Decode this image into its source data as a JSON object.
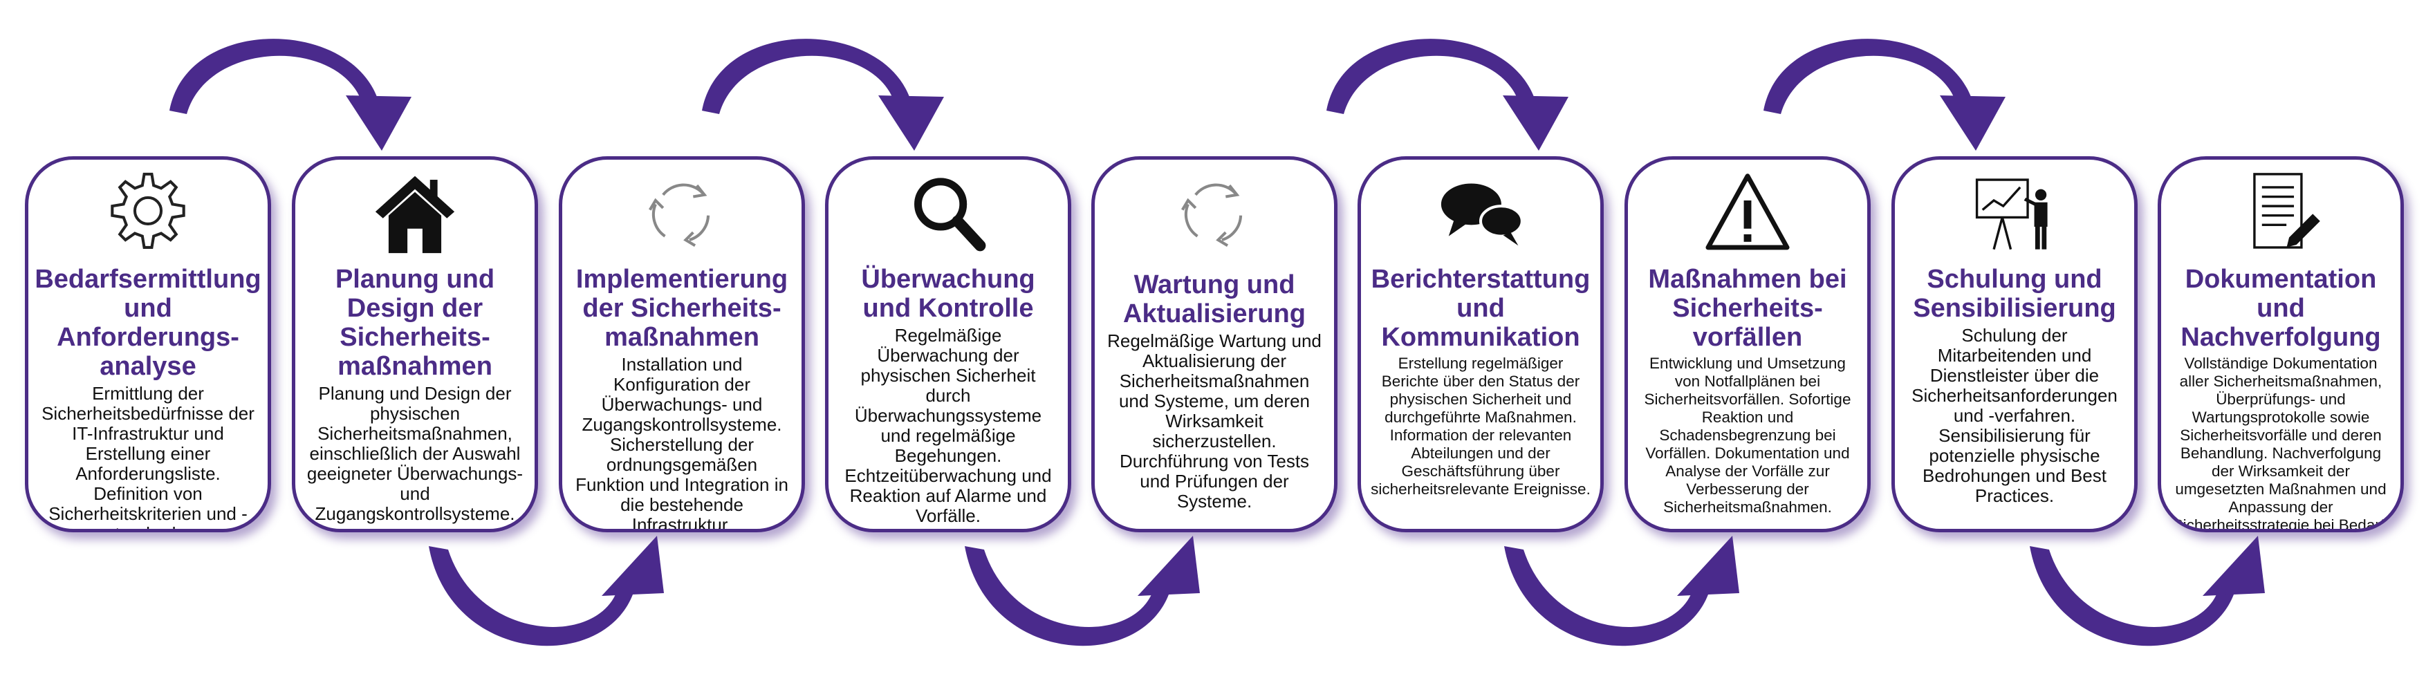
{
  "diagram": {
    "accent_color": "#4b2c86",
    "steps": [
      {
        "icon": "gear-icon",
        "title": "Bedarfsermittlung und Anforderungs- analyse",
        "text": "Ermittlung der Sicherheitsbedürfnisse der IT-Infrastruktur und Erstellung einer Anforderungsliste. Definition von Sicherheitskriterien und -standards."
      },
      {
        "icon": "house-icon",
        "title": "Planung und Design der Sicherheits- maßnahmen",
        "text": "Planung und Design der physischen Sicherheitsmaßnahmen, einschließlich der Auswahl geeigneter Überwachungs- und Zugangskontrollsysteme."
      },
      {
        "icon": "recycle-icon",
        "title": "Implementierung der Sicherheits- maßnahmen",
        "text": "Installation und Konfiguration der Überwachungs- und Zugangskontrollsysteme. Sicherstellung der ordnungsgemäßen Funktion und Integration in die bestehende Infrastruktur."
      },
      {
        "icon": "magnifier-icon",
        "title": "Überwachung und Kontrolle",
        "text": "Regelmäßige Überwachung der physischen Sicherheit durch Überwachungssysteme und regelmäßige Begehungen. Echtzeitüberwachung und Reaktion auf Alarme und Vorfälle."
      },
      {
        "icon": "recycle-icon",
        "title": "Wartung und Aktualisierung",
        "text": "Regelmäßige Wartung und Aktualisierung der Sicherheitsmaßnahmen und Systeme, um deren Wirksamkeit sicherzustellen. Durchführung von Tests und Prüfungen der Systeme."
      },
      {
        "icon": "speech-bubbles-icon",
        "title": "Berichterstattung und Kommunikation",
        "text": "Erstellung regelmäßiger Berichte über den Status der physischen Sicherheit und durchgeführte Maßnahmen. Information der relevanten Abteilungen und der Geschäftsführung über sicherheitsrelevante Ereignisse."
      },
      {
        "icon": "warning-icon",
        "title": "Maßnahmen bei Sicherheits- vorfällen",
        "text": "Entwicklung und Umsetzung von Notfallplänen bei Sicherheitsvorfällen. Sofortige Reaktion und Schadensbegrenzung bei Vorfällen. Dokumentation und Analyse der Vorfälle zur Verbesserung der Sicherheitsmaßnahmen."
      },
      {
        "icon": "presentation-icon",
        "title": "Schulung und Sensibilisierung",
        "text": "Schulung der Mitarbeitenden und Dienstleister über die Sicherheitsanforderungen und -verfahren. Sensibilisierung für potenzielle physische Bedrohungen und Best Practices."
      },
      {
        "icon": "document-icon",
        "title": "Dokumentation und Nachverfolgung",
        "text": "Vollständige Dokumentation aller Sicherheitsmaßnahmen, Überprüfungs- und Wartungsprotokolle sowie Sicherheitsvorfälle und deren Behandlung. Nachverfolgung der Wirksamkeit der umgesetzten Maßnahmen und Anpassung der Sicherheitsstrategie bei Bedarf."
      }
    ]
  }
}
